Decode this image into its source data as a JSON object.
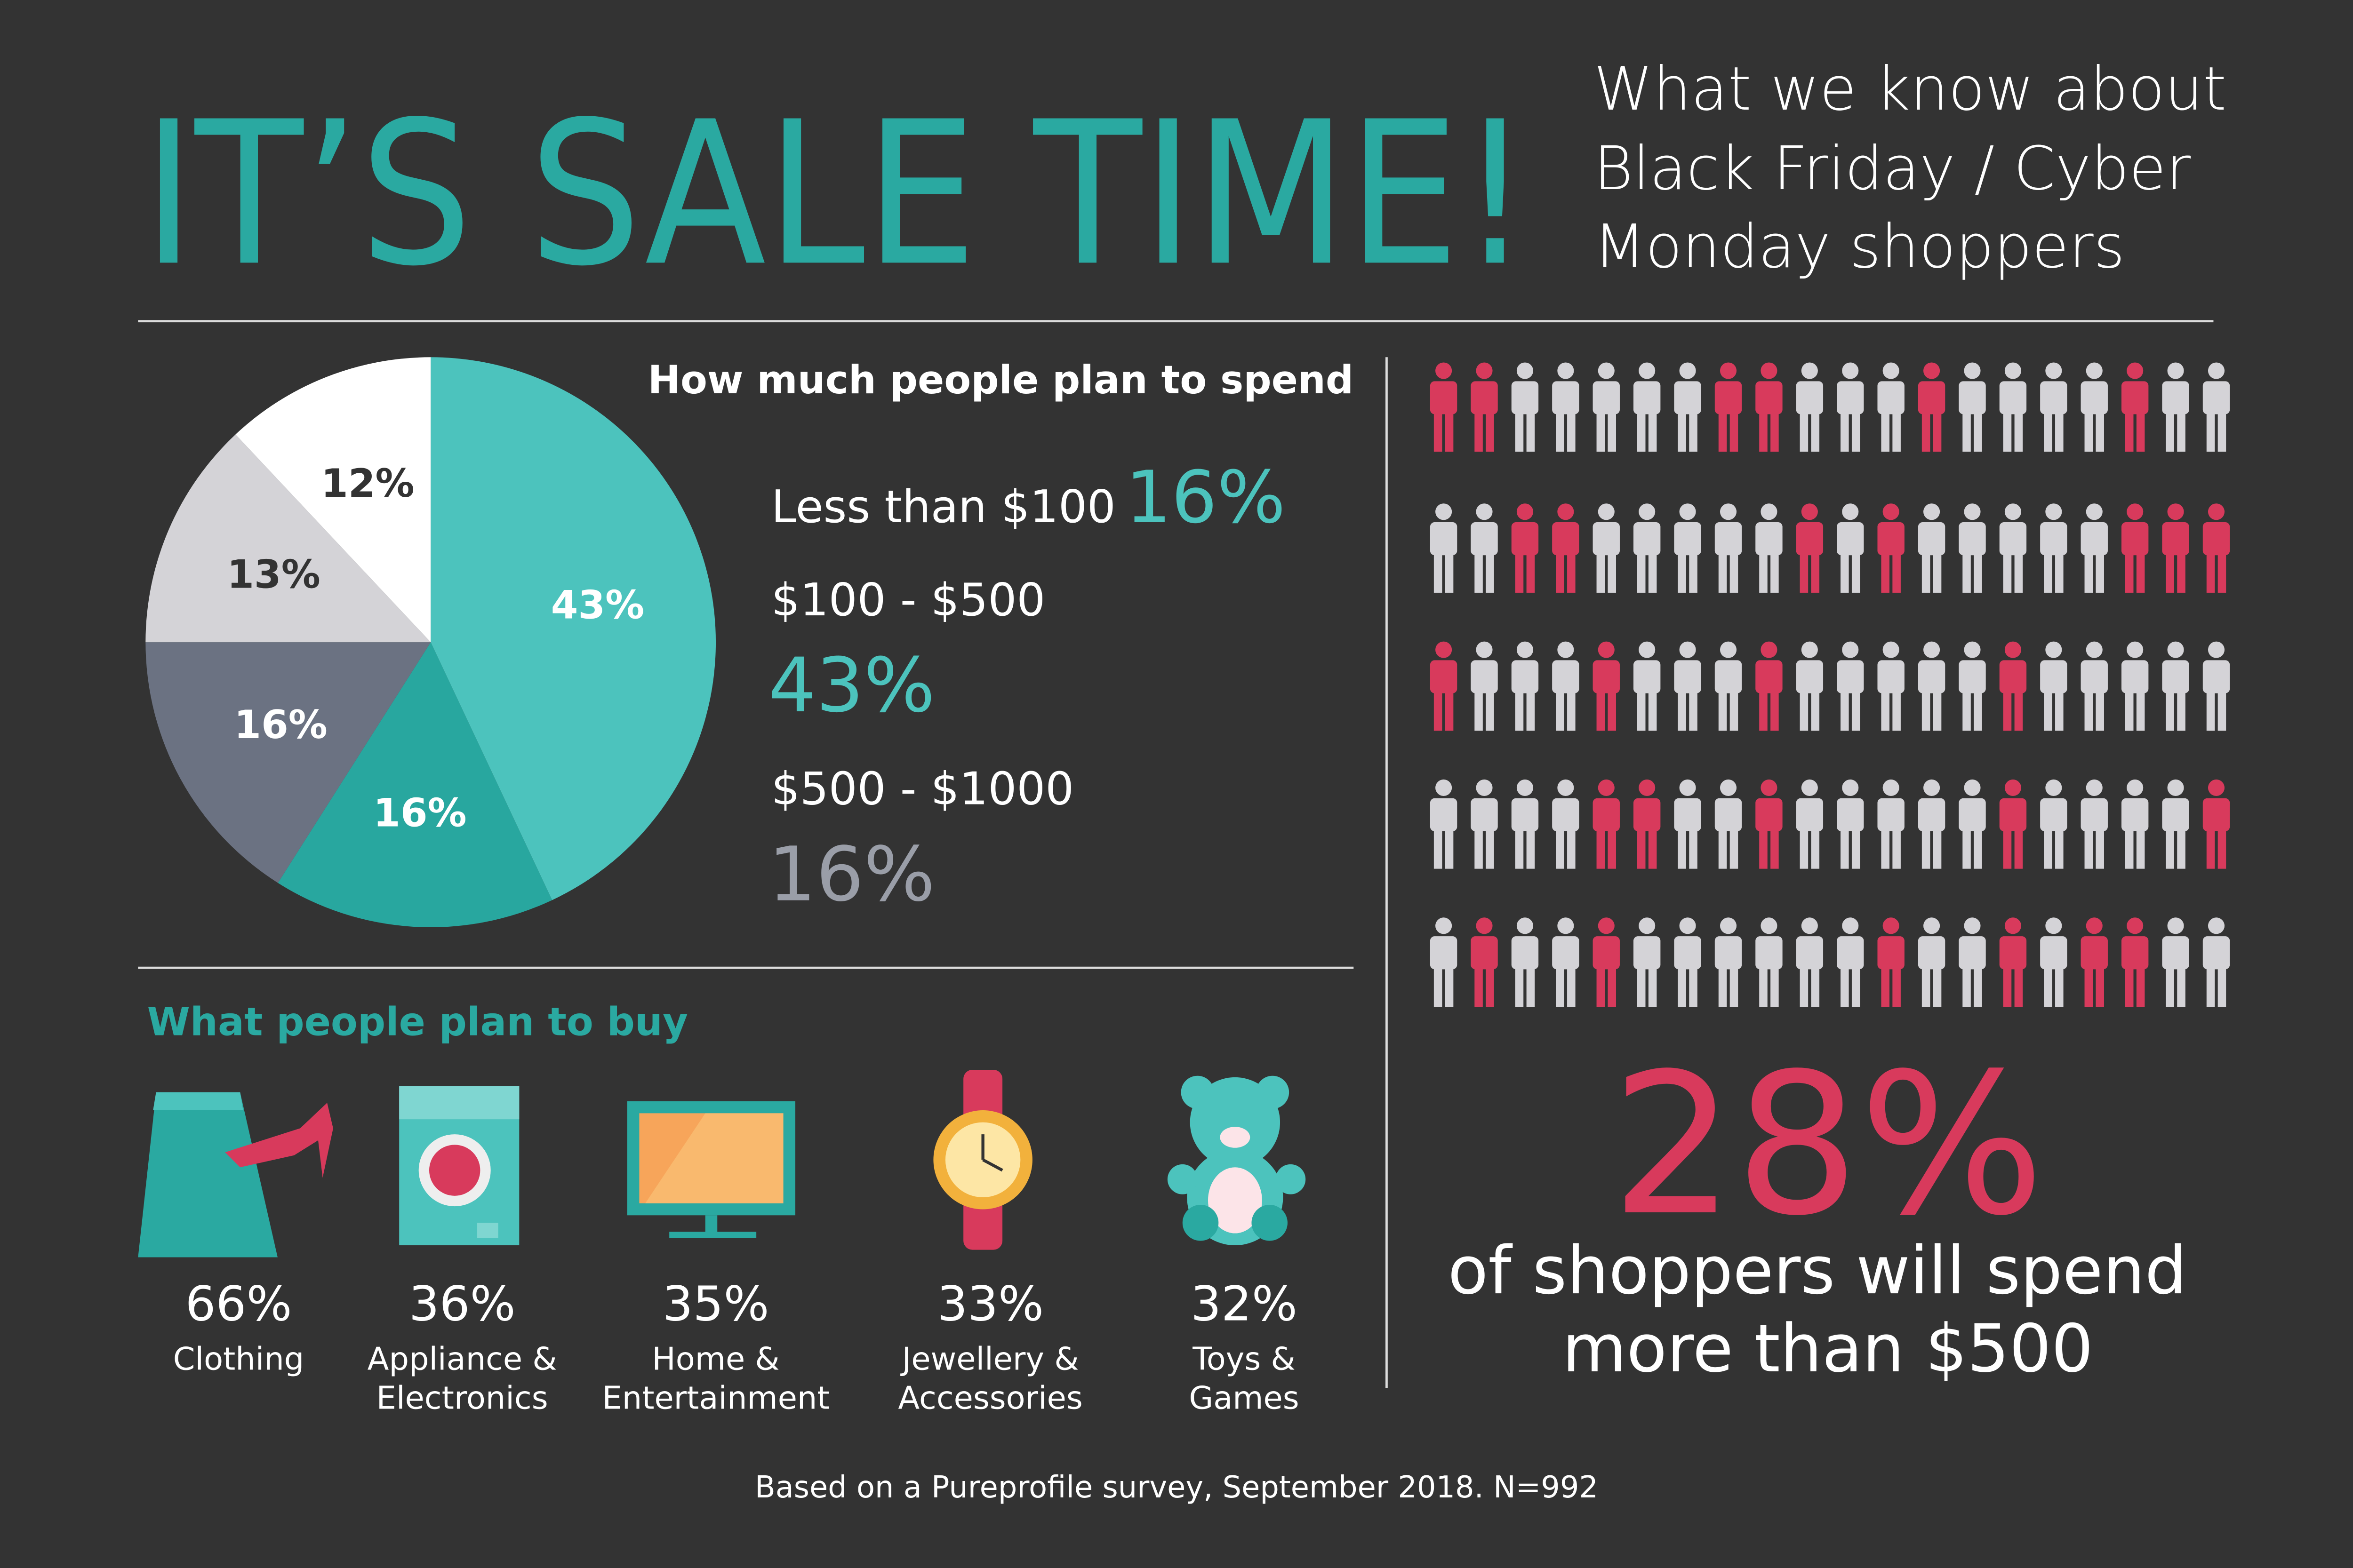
{
  "header": {
    "title": "IT’S SALE TIME!",
    "subtitle_lines": [
      "What we know about",
      "Black Friday / Cyber",
      "Monday shoppers"
    ]
  },
  "chart_data": {
    "type": "pie",
    "title": "How much people plan to spend",
    "categories": [
      null,
      null,
      null,
      null,
      null
    ],
    "values": [
      43,
      16,
      16,
      13,
      12
    ],
    "value_labels": [
      "43%",
      "16%",
      "16%",
      "13%",
      "12%"
    ],
    "colors": [
      "#4cc3bd",
      "#28a79f",
      "#6b7282",
      "#d4d3d7",
      "#ffffff"
    ]
  },
  "spend_legend": [
    {
      "range": "Less than $100",
      "percent": "16%",
      "color": "#4cc3bd"
    },
    {
      "range": "$100 - $500",
      "percent": "43%",
      "color": "#4cc3bd"
    },
    {
      "range": "$500 - $1000",
      "percent": "16%",
      "color": "#9a9ea8"
    }
  ],
  "buy": {
    "title": "What people plan to buy",
    "items": [
      {
        "percent": "66%",
        "label": [
          "Clothing"
        ]
      },
      {
        "percent": "36%",
        "label": [
          "Appliance &",
          "Electronics"
        ]
      },
      {
        "percent": "35%",
        "label": [
          "Home &",
          "Entertainment"
        ]
      },
      {
        "percent": "33%",
        "label": [
          "Jewellery &",
          "Accessories"
        ]
      },
      {
        "percent": "32%",
        "label": [
          "Toys &",
          "Games"
        ]
      }
    ]
  },
  "highlight": {
    "percent": "28%",
    "text_lines": [
      "of shoppers will spend",
      "more than $500"
    ]
  },
  "footer": "Based on a Pureprofile survey, September 2018. N=992"
}
